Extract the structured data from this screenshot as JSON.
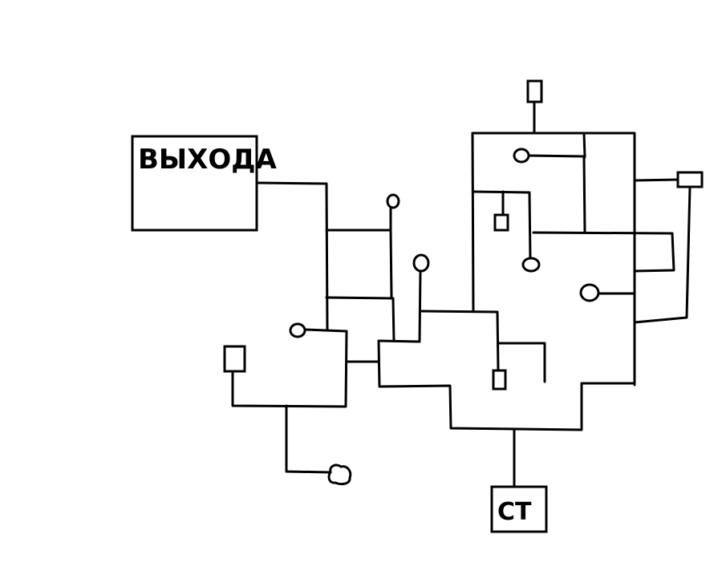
{
  "diagram": {
    "exit_box": {
      "label": "ВЫХОДА"
    },
    "start_box": {
      "label": "СТ"
    },
    "colors": {
      "stroke": "#000000",
      "background": "#ffffff"
    }
  }
}
